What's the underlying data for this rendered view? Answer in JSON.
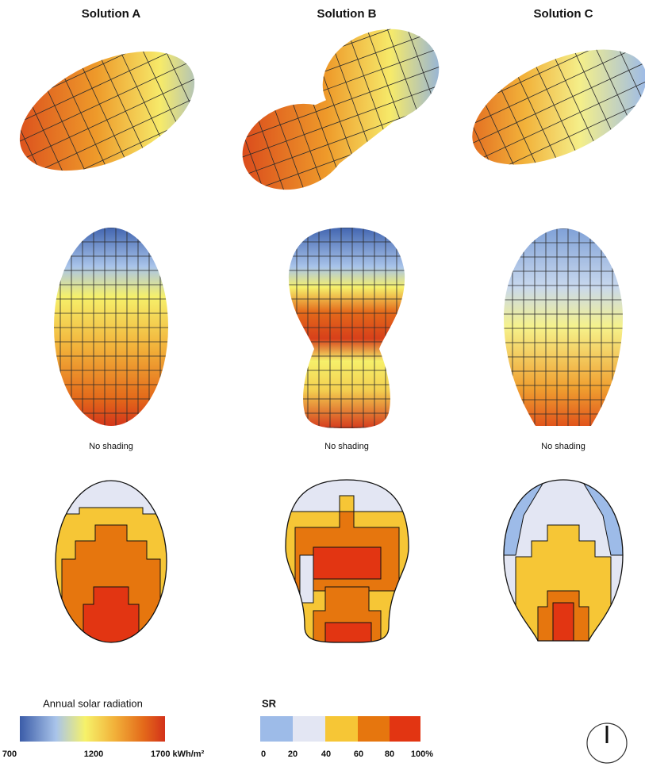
{
  "columns": [
    {
      "title": "Solution A",
      "caption": "No shading"
    },
    {
      "title": "Solution B",
      "caption": "No shading"
    },
    {
      "title": "Solution C",
      "caption": "No shading"
    }
  ],
  "legend_radiation": {
    "title": "Annual solar radiation",
    "labels": [
      "700",
      "1200",
      "1700 kWh/m²"
    ]
  },
  "legend_sr": {
    "title": "SR",
    "labels": [
      "0",
      "20",
      "40",
      "60",
      "80",
      "100%"
    ]
  }
}
